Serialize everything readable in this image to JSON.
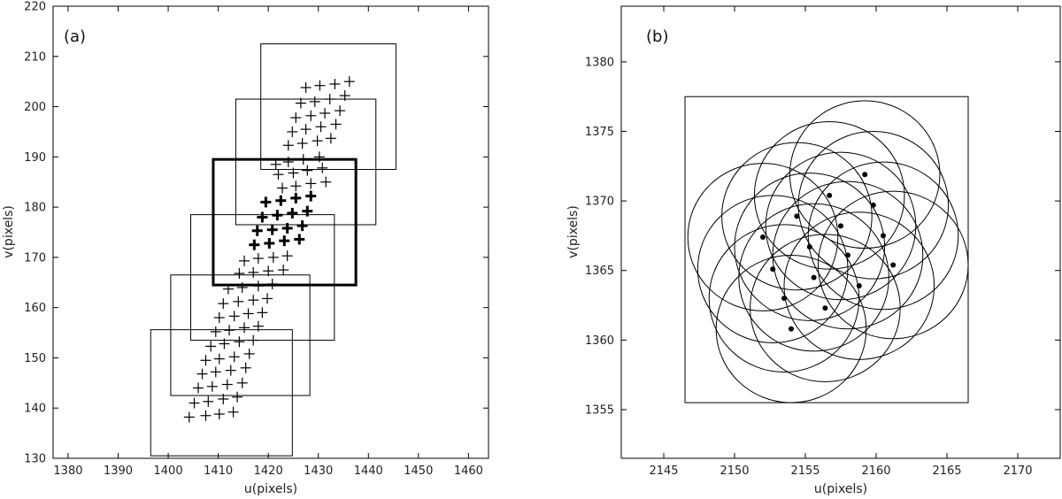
{
  "chart_data": [
    {
      "type": "scatter",
      "panel_label": "(a)",
      "xlabel": "u(pixels)",
      "ylabel": "v(pixels)",
      "xlim": [
        1377,
        1464
      ],
      "ylim": [
        130,
        220
      ],
      "xticks": [
        1380,
        1390,
        1400,
        1410,
        1420,
        1430,
        1440,
        1450,
        1460
      ],
      "yticks": [
        130,
        140,
        150,
        160,
        170,
        180,
        190,
        200,
        210,
        220
      ],
      "marker": "plus",
      "points": [
        [
          1404.2,
          138.2
        ],
        [
          1407.5,
          138.5
        ],
        [
          1410.2,
          138.8
        ],
        [
          1413.0,
          139.2
        ],
        [
          1405.2,
          141.0
        ],
        [
          1408.0,
          141.3
        ],
        [
          1411.0,
          141.8
        ],
        [
          1413.8,
          142.2
        ],
        [
          1406.0,
          144.0
        ],
        [
          1408.8,
          144.3
        ],
        [
          1411.8,
          144.7
        ],
        [
          1414.8,
          145.0
        ],
        [
          1406.8,
          146.8
        ],
        [
          1409.5,
          147.2
        ],
        [
          1412.5,
          147.5
        ],
        [
          1415.5,
          148.0
        ],
        [
          1407.5,
          149.5
        ],
        [
          1410.2,
          149.8
        ],
        [
          1413.2,
          150.2
        ],
        [
          1416.2,
          150.8
        ],
        [
          1408.5,
          152.3
        ],
        [
          1411.2,
          152.8
        ],
        [
          1414.2,
          153.2
        ],
        [
          1417.0,
          153.5
        ],
        [
          1409.5,
          155.2
        ],
        [
          1412.2,
          155.5
        ],
        [
          1415.2,
          156.0
        ],
        [
          1418.0,
          156.3
        ],
        [
          1410.2,
          158.0
        ],
        [
          1413.2,
          158.3
        ],
        [
          1416.0,
          158.8
        ],
        [
          1418.8,
          159.0
        ],
        [
          1411.0,
          160.8
        ],
        [
          1414.0,
          161.2
        ],
        [
          1417.0,
          161.5
        ],
        [
          1419.8,
          161.8
        ],
        [
          1412.0,
          163.7
        ],
        [
          1414.8,
          164.0
        ],
        [
          1418.0,
          164.3
        ],
        [
          1420.8,
          164.7
        ],
        [
          1414.2,
          166.8
        ],
        [
          1417.0,
          167.0
        ],
        [
          1420.0,
          167.3
        ],
        [
          1423.0,
          167.5
        ],
        [
          1415.2,
          169.3
        ],
        [
          1418.0,
          169.8
        ],
        [
          1421.0,
          170.0
        ],
        [
          1423.8,
          170.3
        ],
        [
          1421.5,
          188.5
        ],
        [
          1424.0,
          189.0
        ],
        [
          1427.0,
          189.5
        ],
        [
          1430.2,
          190.0
        ],
        [
          1422.0,
          186.5
        ],
        [
          1425.0,
          186.8
        ],
        [
          1427.8,
          187.3
        ],
        [
          1430.8,
          187.8
        ],
        [
          1422.8,
          183.8
        ],
        [
          1425.5,
          184.2
        ],
        [
          1428.5,
          184.7
        ],
        [
          1431.5,
          185.0
        ],
        [
          1424.0,
          192.3
        ],
        [
          1426.8,
          192.7
        ],
        [
          1429.8,
          193.2
        ],
        [
          1432.5,
          193.7
        ],
        [
          1424.8,
          195.0
        ],
        [
          1427.5,
          195.5
        ],
        [
          1430.5,
          196.0
        ],
        [
          1433.5,
          196.5
        ],
        [
          1425.5,
          197.8
        ],
        [
          1428.5,
          198.2
        ],
        [
          1431.3,
          198.7
        ],
        [
          1434.3,
          199.2
        ],
        [
          1426.5,
          200.7
        ],
        [
          1429.3,
          201.0
        ],
        [
          1432.3,
          201.5
        ],
        [
          1435.3,
          202.2
        ],
        [
          1427.5,
          203.8
        ],
        [
          1430.3,
          204.2
        ],
        [
          1433.3,
          204.5
        ],
        [
          1436.2,
          205.0
        ]
      ],
      "bold_points": [
        [
          1417.2,
          172.5
        ],
        [
          1420.2,
          172.8
        ],
        [
          1423.2,
          173.3
        ],
        [
          1426.2,
          173.6
        ],
        [
          1417.8,
          175.3
        ],
        [
          1420.8,
          175.5
        ],
        [
          1423.8,
          175.8
        ],
        [
          1426.8,
          176.3
        ],
        [
          1418.8,
          178.0
        ],
        [
          1421.8,
          178.4
        ],
        [
          1424.8,
          178.8
        ],
        [
          1427.8,
          179.2
        ],
        [
          1419.5,
          181.0
        ],
        [
          1422.5,
          181.3
        ],
        [
          1425.5,
          181.8
        ],
        [
          1428.5,
          182.2
        ]
      ],
      "boxes": [
        {
          "u": [
            1396.5,
            1424.8
          ],
          "v": [
            130.5,
            155.6
          ],
          "bold": false
        },
        {
          "u": [
            1400.5,
            1428.3
          ],
          "v": [
            142.5,
            166.5
          ],
          "bold": false
        },
        {
          "u": [
            1404.5,
            1433.2
          ],
          "v": [
            153.5,
            178.5
          ],
          "bold": false
        },
        {
          "u": [
            1409.0,
            1437.5
          ],
          "v": [
            164.5,
            189.5
          ],
          "bold": true
        },
        {
          "u": [
            1413.5,
            1441.5
          ],
          "v": [
            176.5,
            201.5
          ],
          "bold": false
        },
        {
          "u": [
            1418.5,
            1445.5
          ],
          "v": [
            187.5,
            212.5
          ],
          "bold": false
        }
      ]
    },
    {
      "type": "scatter",
      "panel_label": "(b)",
      "xlabel": "u(pixels)",
      "ylabel": "v(pixels)",
      "xlim": [
        2142,
        2173
      ],
      "ylim": [
        1351.5,
        1384
      ],
      "xticks": [
        2145,
        2150,
        2155,
        2160,
        2165,
        2170
      ],
      "yticks": [
        1355,
        1360,
        1365,
        1370,
        1375,
        1380
      ],
      "marker": "dot",
      "circle_radius": 5.3,
      "points": [
        [
          2159.2,
          1371.9
        ],
        [
          2156.7,
          1370.4
        ],
        [
          2159.8,
          1369.7
        ],
        [
          2154.4,
          1368.9
        ],
        [
          2157.5,
          1368.2
        ],
        [
          2160.5,
          1367.5
        ],
        [
          2152.0,
          1367.4
        ],
        [
          2155.3,
          1366.7
        ],
        [
          2158.0,
          1366.1
        ],
        [
          2161.2,
          1365.4
        ],
        [
          2152.7,
          1365.1
        ],
        [
          2155.6,
          1364.5
        ],
        [
          2158.8,
          1363.9
        ],
        [
          2153.5,
          1363.0
        ],
        [
          2156.4,
          1362.3
        ],
        [
          2154.0,
          1360.8
        ]
      ],
      "boxes": [
        {
          "u": [
            2146.5,
            2166.5
          ],
          "v": [
            1355.5,
            1377.5
          ],
          "bold": false
        }
      ]
    }
  ]
}
